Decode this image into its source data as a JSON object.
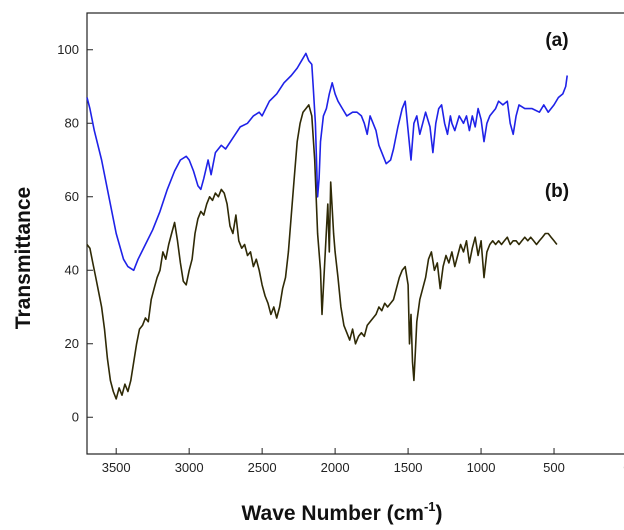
{
  "chart_data": {
    "type": "line",
    "xlabel": "Wave Number (cm",
    "xlabel_sup": "-1",
    "xlabel_suffix": ")",
    "ylabel": "Transmittance",
    "xlim": [
      3700,
      0
    ],
    "ylim": [
      -10,
      110
    ],
    "x_reversed": true,
    "grid": false,
    "x_ticks": [
      3500,
      3000,
      2500,
      2000,
      1500,
      1000,
      500,
      0
    ],
    "x_tick_labels": [
      "3500",
      "3000",
      "2500",
      "2000",
      "1500",
      "1000",
      "500",
      "0"
    ],
    "y_ticks": [
      0,
      20,
      40,
      60,
      80,
      100
    ],
    "y_tick_labels": [
      "0",
      "20",
      "40",
      "60",
      "80",
      "100"
    ],
    "annotations": [
      {
        "text": "(a)",
        "x": 480,
        "y": 101
      },
      {
        "text": "(b)",
        "x": 480,
        "y": 60
      }
    ],
    "series": [
      {
        "color": "#1f22e8",
        "points": [
          [
            3700,
            87
          ],
          [
            3680,
            84
          ],
          [
            3650,
            78
          ],
          [
            3600,
            70
          ],
          [
            3550,
            60
          ],
          [
            3500,
            50
          ],
          [
            3450,
            43
          ],
          [
            3420,
            41
          ],
          [
            3380,
            40
          ],
          [
            3350,
            43
          ],
          [
            3300,
            47
          ],
          [
            3250,
            51
          ],
          [
            3200,
            56
          ],
          [
            3150,
            62
          ],
          [
            3100,
            67
          ],
          [
            3060,
            70
          ],
          [
            3020,
            71
          ],
          [
            3000,
            70
          ],
          [
            2970,
            67
          ],
          [
            2940,
            63
          ],
          [
            2920,
            62
          ],
          [
            2900,
            65
          ],
          [
            2870,
            70
          ],
          [
            2850,
            66
          ],
          [
            2820,
            72
          ],
          [
            2780,
            74
          ],
          [
            2750,
            73
          ],
          [
            2700,
            76
          ],
          [
            2650,
            79
          ],
          [
            2600,
            80
          ],
          [
            2560,
            82
          ],
          [
            2520,
            83
          ],
          [
            2500,
            82
          ],
          [
            2450,
            86
          ],
          [
            2400,
            88
          ],
          [
            2350,
            91
          ],
          [
            2300,
            93
          ],
          [
            2260,
            95
          ],
          [
            2230,
            97
          ],
          [
            2200,
            99
          ],
          [
            2180,
            97
          ],
          [
            2160,
            96
          ],
          [
            2150,
            90
          ],
          [
            2135,
            80
          ],
          [
            2120,
            60
          ],
          [
            2110,
            65
          ],
          [
            2100,
            75
          ],
          [
            2080,
            82
          ],
          [
            2060,
            84
          ],
          [
            2040,
            88
          ],
          [
            2020,
            91
          ],
          [
            2000,
            88
          ],
          [
            1980,
            86
          ],
          [
            1950,
            84
          ],
          [
            1920,
            82
          ],
          [
            1880,
            83
          ],
          [
            1850,
            83
          ],
          [
            1820,
            82
          ],
          [
            1800,
            80
          ],
          [
            1780,
            77
          ],
          [
            1760,
            82
          ],
          [
            1740,
            80
          ],
          [
            1720,
            78
          ],
          [
            1700,
            74
          ],
          [
            1680,
            72
          ],
          [
            1650,
            69
          ],
          [
            1620,
            70
          ],
          [
            1600,
            73
          ],
          [
            1570,
            79
          ],
          [
            1540,
            84
          ],
          [
            1520,
            86
          ],
          [
            1500,
            78
          ],
          [
            1480,
            70
          ],
          [
            1460,
            80
          ],
          [
            1440,
            82
          ],
          [
            1420,
            77
          ],
          [
            1400,
            80
          ],
          [
            1380,
            83
          ],
          [
            1350,
            79
          ],
          [
            1330,
            72
          ],
          [
            1310,
            80
          ],
          [
            1290,
            84
          ],
          [
            1270,
            85
          ],
          [
            1250,
            80
          ],
          [
            1230,
            77
          ],
          [
            1210,
            82
          ],
          [
            1200,
            80
          ],
          [
            1180,
            78
          ],
          [
            1150,
            82
          ],
          [
            1120,
            80
          ],
          [
            1100,
            82
          ],
          [
            1080,
            78
          ],
          [
            1060,
            82
          ],
          [
            1040,
            79
          ],
          [
            1020,
            84
          ],
          [
            1000,
            81
          ],
          [
            980,
            75
          ],
          [
            960,
            80
          ],
          [
            940,
            82
          ],
          [
            900,
            84
          ],
          [
            880,
            86
          ],
          [
            850,
            85
          ],
          [
            820,
            86
          ],
          [
            800,
            80
          ],
          [
            780,
            77
          ],
          [
            760,
            82
          ],
          [
            740,
            85
          ],
          [
            700,
            84
          ],
          [
            650,
            84
          ],
          [
            600,
            83
          ],
          [
            570,
            85
          ],
          [
            540,
            83
          ],
          [
            500,
            85
          ],
          [
            470,
            87
          ],
          [
            440,
            88
          ],
          [
            420,
            90
          ],
          [
            410,
            93
          ]
        ]
      },
      {
        "color": "#2f2a06",
        "points": [
          [
            3700,
            47
          ],
          [
            3680,
            46
          ],
          [
            3660,
            42
          ],
          [
            3640,
            38
          ],
          [
            3620,
            34
          ],
          [
            3600,
            30
          ],
          [
            3580,
            24
          ],
          [
            3560,
            16
          ],
          [
            3540,
            10
          ],
          [
            3520,
            7
          ],
          [
            3500,
            5
          ],
          [
            3480,
            8
          ],
          [
            3460,
            6
          ],
          [
            3440,
            9
          ],
          [
            3420,
            7
          ],
          [
            3400,
            10
          ],
          [
            3380,
            15
          ],
          [
            3360,
            20
          ],
          [
            3340,
            24
          ],
          [
            3320,
            25
          ],
          [
            3300,
            27
          ],
          [
            3280,
            26
          ],
          [
            3260,
            32
          ],
          [
            3240,
            35
          ],
          [
            3220,
            38
          ],
          [
            3200,
            40
          ],
          [
            3180,
            45
          ],
          [
            3160,
            43
          ],
          [
            3140,
            47
          ],
          [
            3120,
            50
          ],
          [
            3100,
            53
          ],
          [
            3080,
            48
          ],
          [
            3060,
            42
          ],
          [
            3040,
            37
          ],
          [
            3020,
            36
          ],
          [
            3000,
            40
          ],
          [
            2980,
            43
          ],
          [
            2960,
            50
          ],
          [
            2940,
            54
          ],
          [
            2920,
            56
          ],
          [
            2900,
            55
          ],
          [
            2880,
            58
          ],
          [
            2860,
            60
          ],
          [
            2840,
            59
          ],
          [
            2820,
            61
          ],
          [
            2800,
            60
          ],
          [
            2780,
            62
          ],
          [
            2760,
            61
          ],
          [
            2740,
            58
          ],
          [
            2720,
            52
          ],
          [
            2700,
            50
          ],
          [
            2680,
            55
          ],
          [
            2660,
            48
          ],
          [
            2640,
            46
          ],
          [
            2620,
            47
          ],
          [
            2600,
            44
          ],
          [
            2580,
            45
          ],
          [
            2560,
            41
          ],
          [
            2540,
            43
          ],
          [
            2520,
            40
          ],
          [
            2500,
            36
          ],
          [
            2480,
            33
          ],
          [
            2460,
            31
          ],
          [
            2440,
            28
          ],
          [
            2420,
            30
          ],
          [
            2400,
            27
          ],
          [
            2380,
            30
          ],
          [
            2360,
            35
          ],
          [
            2340,
            38
          ],
          [
            2320,
            45
          ],
          [
            2300,
            55
          ],
          [
            2280,
            65
          ],
          [
            2260,
            75
          ],
          [
            2240,
            80
          ],
          [
            2220,
            83
          ],
          [
            2200,
            84
          ],
          [
            2180,
            85
          ],
          [
            2160,
            82
          ],
          [
            2140,
            70
          ],
          [
            2120,
            50
          ],
          [
            2100,
            40
          ],
          [
            2090,
            28
          ],
          [
            2070,
            43
          ],
          [
            2050,
            58
          ],
          [
            2040,
            45
          ],
          [
            2030,
            64
          ],
          [
            2010,
            50
          ],
          [
            2000,
            45
          ],
          [
            1980,
            38
          ],
          [
            1960,
            30
          ],
          [
            1940,
            25
          ],
          [
            1920,
            23
          ],
          [
            1900,
            21
          ],
          [
            1880,
            24
          ],
          [
            1860,
            20
          ],
          [
            1840,
            22
          ],
          [
            1820,
            23
          ],
          [
            1800,
            22
          ],
          [
            1780,
            25
          ],
          [
            1760,
            26
          ],
          [
            1740,
            27
          ],
          [
            1720,
            28
          ],
          [
            1700,
            30
          ],
          [
            1680,
            29
          ],
          [
            1660,
            31
          ],
          [
            1640,
            30
          ],
          [
            1620,
            31
          ],
          [
            1600,
            32
          ],
          [
            1580,
            35
          ],
          [
            1560,
            38
          ],
          [
            1540,
            40
          ],
          [
            1520,
            41
          ],
          [
            1500,
            36
          ],
          [
            1490,
            20
          ],
          [
            1480,
            28
          ],
          [
            1470,
            15
          ],
          [
            1460,
            10
          ],
          [
            1450,
            18
          ],
          [
            1440,
            26
          ],
          [
            1420,
            32
          ],
          [
            1400,
            35
          ],
          [
            1380,
            38
          ],
          [
            1360,
            43
          ],
          [
            1340,
            45
          ],
          [
            1320,
            40
          ],
          [
            1300,
            42
          ],
          [
            1280,
            35
          ],
          [
            1260,
            41
          ],
          [
            1240,
            44
          ],
          [
            1220,
            42
          ],
          [
            1200,
            45
          ],
          [
            1180,
            41
          ],
          [
            1160,
            44
          ],
          [
            1140,
            47
          ],
          [
            1120,
            45
          ],
          [
            1100,
            48
          ],
          [
            1080,
            42
          ],
          [
            1060,
            46
          ],
          [
            1040,
            49
          ],
          [
            1020,
            44
          ],
          [
            1000,
            48
          ],
          [
            980,
            38
          ],
          [
            960,
            45
          ],
          [
            940,
            47
          ],
          [
            920,
            48
          ],
          [
            900,
            47
          ],
          [
            880,
            48
          ],
          [
            860,
            47
          ],
          [
            840,
            48
          ],
          [
            820,
            49
          ],
          [
            800,
            47
          ],
          [
            780,
            48
          ],
          [
            760,
            48
          ],
          [
            740,
            47
          ],
          [
            720,
            48
          ],
          [
            700,
            49
          ],
          [
            680,
            48
          ],
          [
            660,
            49
          ],
          [
            640,
            48
          ],
          [
            620,
            47
          ],
          [
            600,
            48
          ],
          [
            580,
            49
          ],
          [
            560,
            50
          ],
          [
            540,
            50
          ],
          [
            520,
            49
          ],
          [
            500,
            48
          ],
          [
            480,
            47
          ]
        ]
      }
    ]
  }
}
